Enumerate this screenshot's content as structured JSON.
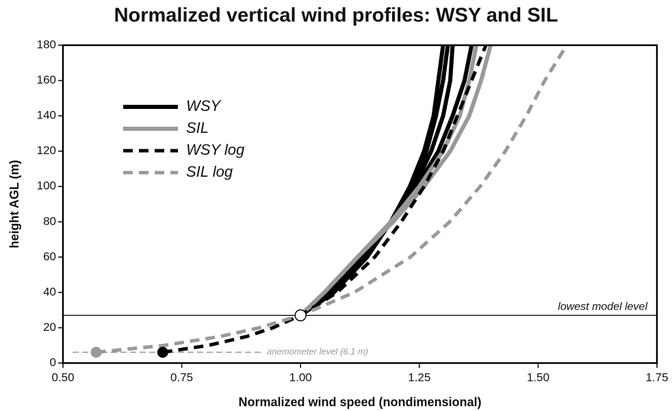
{
  "chart_data": {
    "type": "line",
    "title": "Normalized vertical wind profiles: WSY and SIL",
    "x_label": "Normalized wind speed (nondimensional)",
    "y_label": "height AGL (m)",
    "xlim": [
      0.5,
      1.75
    ],
    "ylim": [
      0,
      180
    ],
    "xticks": [
      {
        "value": 0.5,
        "label": "0.50"
      },
      {
        "value": 0.75,
        "label": "0.75"
      },
      {
        "value": 1,
        "label": "1.00"
      },
      {
        "value": 1.25,
        "label": "1.25"
      },
      {
        "value": 1.5,
        "label": "1.50"
      },
      {
        "value": 1.75,
        "label": "1.75"
      }
    ],
    "yticks": [
      0,
      20,
      40,
      60,
      80,
      100,
      120,
      140,
      160,
      180
    ],
    "grid": false,
    "legend": "upper left",
    "series": [
      {
        "name": "WSY",
        "color": "#000000",
        "dashed": false,
        "curves": [
          {
            "x": [
              1.0,
              1.07,
              1.14,
              1.19,
              1.23,
              1.26,
              1.28,
              1.29,
              1.3
            ],
            "y": [
              27,
              40,
              60,
              80,
              100,
              120,
              140,
              160,
              180
            ]
          },
          {
            "x": [
              1.0,
              1.07,
              1.14,
              1.19,
              1.235,
              1.265,
              1.285,
              1.3,
              1.31
            ],
            "y": [
              27,
              40,
              60,
              80,
              100,
              120,
              140,
              160,
              180
            ]
          },
          {
            "x": [
              1.0,
              1.065,
              1.135,
              1.19,
              1.24,
              1.275,
              1.3,
              1.315,
              1.32
            ],
            "y": [
              27,
              40,
              60,
              80,
              100,
              120,
              140,
              160,
              180
            ]
          },
          {
            "x": [
              1.0,
              1.06,
              1.13,
              1.19,
              1.245,
              1.29,
              1.32,
              1.345,
              1.36
            ],
            "y": [
              27,
              40,
              60,
              80,
              100,
              120,
              140,
              160,
              180
            ]
          }
        ]
      },
      {
        "name": "SIL",
        "color": "#999999",
        "dashed": false,
        "curves": [
          {
            "x": [
              1.0,
              1.05,
              1.12,
              1.19,
              1.25,
              1.3,
              1.335,
              1.355,
              1.37
            ],
            "y": [
              27,
              40,
              60,
              80,
              100,
              120,
              140,
              160,
              180
            ]
          },
          {
            "x": [
              1.0,
              1.05,
              1.12,
              1.195,
              1.26,
              1.315,
              1.355,
              1.38,
              1.4
            ],
            "y": [
              27,
              40,
              60,
              80,
              100,
              120,
              140,
              160,
              180
            ]
          }
        ]
      },
      {
        "name": "WSY log",
        "color": "#000000",
        "dashed": true,
        "curves": [
          {
            "x": [
              0.71,
              0.806,
              0.886,
              0.942,
              1.0,
              1.077,
              1.156,
              1.212,
              1.26,
              1.3,
              1.33,
              1.36,
              1.39
            ],
            "y": [
              6.1,
              10,
              15,
              20,
              27,
              40,
              60,
              80,
              100,
              120,
              140,
              160,
              180
            ]
          }
        ]
      },
      {
        "name": "SIL log",
        "color": "#999999",
        "dashed": true,
        "curves": [
          {
            "x": [
              0.57,
              0.713,
              0.83,
              0.913,
              1.0,
              1.113,
              1.231,
              1.314,
              1.378,
              1.431,
              1.475,
              1.514,
              1.56
            ],
            "y": [
              6.1,
              10,
              15,
              20,
              27,
              40,
              60,
              80,
              100,
              120,
              140,
              160,
              180
            ]
          }
        ]
      }
    ],
    "points": [
      {
        "x": 0.57,
        "y": 6.1,
        "color": "#999999"
      },
      {
        "x": 0.71,
        "y": 6.1,
        "color": "#000000"
      },
      {
        "x": 1.0,
        "y": 27,
        "color": "#ffffff"
      }
    ],
    "lowest_model_level": {
      "label": "lowest model level",
      "y": 27
    },
    "anemometer_level": {
      "label": "anemometer level (6.1 m)",
      "y": 6.1
    }
  }
}
